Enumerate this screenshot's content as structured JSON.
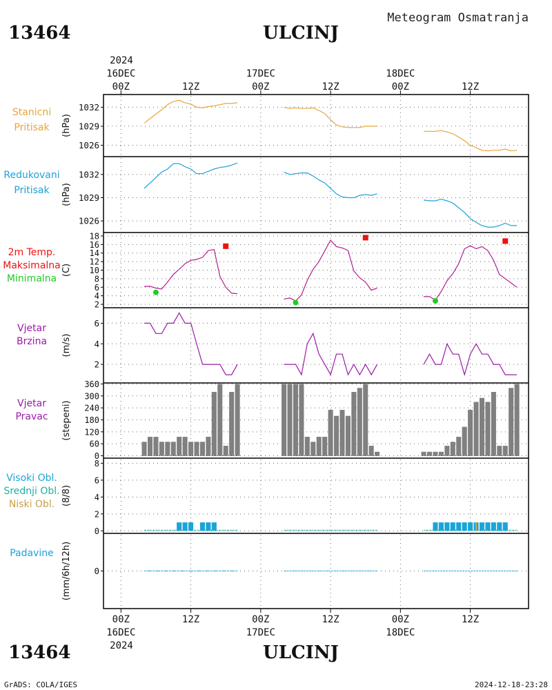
{
  "header": {
    "station_id": "13464",
    "station_name": "ULCINJ",
    "product": "Meteogram Osmatranja",
    "year": "2024"
  },
  "footer": {
    "station_id": "13464",
    "station_name": "ULCINJ",
    "credit": "GrADS: COLA/IGES",
    "timestamp": "2024-12-18-23:28"
  },
  "time_axis": {
    "day_labels": [
      "16DEC",
      "17DEC",
      "18DEC"
    ],
    "hour_labels": [
      "00Z",
      "12Z",
      "00Z",
      "12Z",
      "00Z",
      "12Z"
    ],
    "hour_values": [
      0,
      12,
      24,
      36,
      48,
      60
    ],
    "top_day_hours": [
      0,
      24,
      48
    ],
    "bottom_day_hours": [
      0,
      24,
      48
    ],
    "range_hours": [
      -3,
      70
    ]
  },
  "colors": {
    "station_pressure": "#e8a43a",
    "reduced_pressure": "#1fa0d8",
    "temperature": "#b0208a",
    "t_max": "#ee1111",
    "t_min": "#22cc22",
    "wind": "#9a1aa8",
    "wind_dir_bar": "#808080",
    "cloud_high": "#1aa5d8",
    "cloud_mid": "#20b0a0",
    "cloud_low": "#c8a048",
    "precip": "#1aa5d8"
  },
  "chart_data": [
    {
      "type": "line",
      "panel": "station_pressure",
      "labels": [
        "Stanicni",
        "Pritisak"
      ],
      "ylabel": "(hPa)",
      "ylim": [
        1024.2,
        1034.0
      ],
      "yticks": [
        1026,
        1029,
        1032
      ],
      "series": [
        {
          "x": [
            4,
            5,
            6,
            7,
            8,
            9,
            10,
            11,
            12,
            13,
            14,
            15,
            16,
            17,
            18,
            19,
            20
          ],
          "y": [
            1029.5,
            1030.2,
            1030.9,
            1031.6,
            1032.4,
            1032.9,
            1033.1,
            1032.7,
            1032.5,
            1032.0,
            1031.9,
            1032.1,
            1032.2,
            1032.4,
            1032.6,
            1032.6,
            1032.7
          ]
        },
        {
          "x": [
            28,
            29,
            30,
            31,
            32,
            33,
            34,
            35,
            36,
            37,
            38,
            39,
            40,
            41,
            42,
            43,
            44
          ],
          "y": [
            1032.0,
            1031.8,
            1031.9,
            1031.8,
            1031.8,
            1031.9,
            1031.5,
            1031.0,
            1030.0,
            1029.2,
            1028.9,
            1028.8,
            1028.8,
            1028.8,
            1029.0,
            1029.0,
            1029.0
          ]
        },
        {
          "x": [
            52,
            53,
            54,
            55,
            56,
            57,
            58,
            59,
            60,
            61,
            62,
            63,
            64,
            65,
            66,
            67,
            68
          ],
          "y": [
            1028.2,
            1028.2,
            1028.2,
            1028.3,
            1028.1,
            1027.8,
            1027.3,
            1026.7,
            1026.0,
            1025.6,
            1025.2,
            1025.1,
            1025.2,
            1025.2,
            1025.4,
            1025.1,
            1025.2
          ]
        }
      ]
    },
    {
      "type": "line",
      "panel": "reduced_pressure",
      "labels": [
        "Redukovani",
        "Pritisak"
      ],
      "ylabel": "(hPa)",
      "ylim": [
        1024.5,
        1034.3
      ],
      "yticks": [
        1026,
        1029,
        1032
      ],
      "series": [
        {
          "x": [
            4,
            5,
            6,
            7,
            8,
            9,
            10,
            11,
            12,
            13,
            14,
            15,
            16,
            17,
            18,
            19,
            20
          ],
          "y": [
            1030.2,
            1030.9,
            1031.6,
            1032.3,
            1032.7,
            1033.4,
            1033.4,
            1033.0,
            1032.7,
            1032.1,
            1032.1,
            1032.4,
            1032.7,
            1032.9,
            1033.0,
            1033.2,
            1033.5
          ]
        },
        {
          "x": [
            28,
            29,
            30,
            31,
            32,
            33,
            34,
            35,
            36,
            37,
            38,
            39,
            40,
            41,
            42,
            43,
            44
          ],
          "y": [
            1032.3,
            1032.0,
            1032.1,
            1032.2,
            1032.2,
            1031.8,
            1031.3,
            1030.9,
            1030.2,
            1029.5,
            1029.1,
            1029.0,
            1029.0,
            1029.3,
            1029.4,
            1029.3,
            1029.5
          ]
        },
        {
          "x": [
            52,
            53,
            54,
            55,
            56,
            57,
            58,
            59,
            60,
            61,
            62,
            63,
            64,
            65,
            66,
            67,
            68
          ],
          "y": [
            1028.7,
            1028.6,
            1028.6,
            1028.8,
            1028.6,
            1028.3,
            1027.7,
            1027.1,
            1026.3,
            1025.8,
            1025.4,
            1025.2,
            1025.2,
            1025.4,
            1025.7,
            1025.4,
            1025.4
          ]
        }
      ]
    },
    {
      "type": "line",
      "panel": "temperature",
      "labels": [
        "2m Temp.",
        "Maksimalna",
        "Minimalna"
      ],
      "ylabel": "(C)",
      "ylim": [
        1.2,
        18.8
      ],
      "yticks": [
        2,
        4,
        6,
        8,
        10,
        12,
        14,
        16,
        18
      ],
      "series": [
        {
          "x": [
            4,
            5,
            6,
            7,
            8,
            9,
            10,
            11,
            12,
            13,
            14,
            15,
            16,
            17,
            18,
            19,
            20
          ],
          "y": [
            6.2,
            6.2,
            5.8,
            5.6,
            7.2,
            9.0,
            10.2,
            11.5,
            12.3,
            12.5,
            13.0,
            14.6,
            14.8,
            8.5,
            6.0,
            4.6,
            4.5
          ]
        },
        {
          "x": [
            28,
            29,
            30,
            31,
            32,
            33,
            34,
            35,
            36,
            37,
            38,
            39,
            40,
            41,
            42,
            43,
            44
          ],
          "y": [
            3.2,
            3.5,
            2.8,
            4.2,
            7.6,
            10.2,
            12.0,
            14.5,
            17.0,
            15.5,
            15.2,
            14.6,
            9.8,
            8.2,
            7.2,
            5.3,
            5.8
          ]
        },
        {
          "x": [
            52,
            53,
            54,
            55,
            56,
            57,
            58,
            59,
            60,
            61,
            62,
            63,
            64,
            65,
            66,
            67,
            68
          ],
          "y": [
            3.8,
            3.8,
            3.0,
            5.0,
            7.5,
            9.2,
            11.5,
            15.0,
            15.7,
            15.0,
            15.5,
            14.6,
            12.3,
            9.0,
            8.0,
            7.0,
            6.0
          ]
        }
      ],
      "maxima": [
        {
          "x": 18,
          "y": 15.6
        },
        {
          "x": 42,
          "y": 17.6
        },
        {
          "x": 66,
          "y": 16.8
        }
      ],
      "minima": [
        {
          "x": 6,
          "y": 4.8
        },
        {
          "x": 30,
          "y": 2.4
        },
        {
          "x": 54,
          "y": 2.8
        }
      ]
    },
    {
      "type": "line",
      "panel": "wind_speed",
      "labels": [
        "Vjetar",
        "Brzina"
      ],
      "ylabel": "(m/s)",
      "ylim": [
        0.2,
        7.5
      ],
      "yticks": [
        2,
        4,
        6
      ],
      "series": [
        {
          "x": [
            4,
            5,
            6,
            7,
            8,
            9,
            10,
            11,
            12,
            13,
            14,
            15,
            16,
            17,
            18,
            19,
            20
          ],
          "y": [
            6,
            6,
            5,
            5,
            6,
            6,
            7,
            6,
            6,
            4,
            2,
            2,
            2,
            2,
            1,
            1,
            2
          ]
        },
        {
          "x": [
            28,
            29,
            30,
            31,
            32,
            33,
            34,
            35,
            36,
            37,
            38,
            39,
            40,
            41,
            42,
            43,
            44
          ],
          "y": [
            2,
            2,
            2,
            1,
            4,
            5,
            3,
            2,
            1,
            3,
            3,
            1,
            2,
            1,
            2,
            1,
            2
          ]
        },
        {
          "x": [
            52,
            53,
            54,
            55,
            56,
            57,
            58,
            59,
            60,
            61,
            62,
            63,
            64,
            65,
            66,
            67,
            68
          ],
          "y": [
            2,
            3,
            2,
            2,
            4,
            3,
            3,
            1,
            3,
            4,
            3,
            3,
            2,
            2,
            1,
            1,
            1
          ]
        }
      ]
    },
    {
      "type": "bar",
      "panel": "wind_direction",
      "labels": [
        "Vjetar",
        "Pravac"
      ],
      "ylabel": "(stepeni)",
      "ylim": [
        -12,
        365
      ],
      "yticks": [
        0,
        60,
        120,
        180,
        240,
        300,
        360
      ],
      "x": [
        4,
        5,
        6,
        7,
        8,
        9,
        10,
        11,
        12,
        13,
        14,
        15,
        16,
        17,
        18,
        19,
        20,
        28,
        29,
        30,
        31,
        32,
        33,
        34,
        35,
        36,
        37,
        38,
        39,
        40,
        41,
        42,
        43,
        44,
        52,
        53,
        54,
        55,
        56,
        57,
        58,
        59,
        60,
        61,
        62,
        63,
        64,
        65,
        66,
        67,
        68
      ],
      "values": [
        70,
        95,
        95,
        70,
        70,
        70,
        95,
        95,
        70,
        70,
        70,
        95,
        320,
        360,
        50,
        320,
        360,
        360,
        360,
        360,
        360,
        95,
        70,
        95,
        95,
        230,
        200,
        230,
        200,
        320,
        340,
        360,
        50,
        20,
        20,
        20,
        20,
        20,
        50,
        70,
        95,
        145,
        230,
        270,
        290,
        270,
        320,
        50,
        50,
        340,
        360
      ]
    },
    {
      "type": "bar",
      "panel": "cloud_cover",
      "labels": [
        "Visoki Obl.",
        "Srednji Obl.",
        "Niski Obl."
      ],
      "ylabel": "(8/8)",
      "ylim": [
        -0.3,
        8.6
      ],
      "yticks": [
        0,
        2,
        4,
        6,
        8
      ],
      "x": [
        10,
        11,
        12,
        14,
        15,
        16,
        54,
        55,
        56,
        57,
        58,
        59,
        60,
        61,
        62,
        63,
        64,
        65,
        66
      ],
      "high_values": [
        1,
        1,
        1,
        1,
        1,
        1,
        1,
        1,
        1,
        1,
        1,
        1,
        1,
        1,
        1,
        1,
        1,
        1,
        1
      ],
      "low_values": [
        0,
        0,
        0,
        0,
        0,
        0,
        0,
        0,
        0,
        0,
        0,
        0,
        0,
        1,
        0,
        0,
        0,
        0,
        0
      ]
    },
    {
      "type": "line",
      "panel": "precipitation",
      "labels": [
        "Padavine"
      ],
      "ylabel": "(mm/6h/12h)",
      "ylim": [
        -1,
        1
      ],
      "yticks": [
        0
      ],
      "series": [
        {
          "x": [
            4,
            20
          ],
          "y": [
            0,
            0
          ]
        },
        {
          "x": [
            28,
            44
          ],
          "y": [
            0,
            0
          ]
        },
        {
          "x": [
            52,
            68
          ],
          "y": [
            0,
            0
          ]
        }
      ]
    }
  ]
}
